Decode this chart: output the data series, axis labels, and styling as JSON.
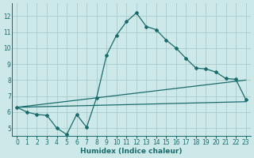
{
  "xlabel": "Humidex (Indice chaleur)",
  "ylabel": "",
  "bg_color": "#cce8e8",
  "grid_color": "#aacccc",
  "line_color": "#1a6b6b",
  "xlim": [
    -0.5,
    23.5
  ],
  "ylim": [
    4.5,
    12.8
  ],
  "xticks": [
    0,
    1,
    2,
    3,
    4,
    5,
    6,
    7,
    8,
    9,
    10,
    11,
    12,
    13,
    14,
    15,
    16,
    17,
    18,
    19,
    20,
    21,
    22,
    23
  ],
  "yticks": [
    5,
    6,
    7,
    8,
    9,
    10,
    11,
    12
  ],
  "curve1_x": [
    0,
    1,
    2,
    3,
    4,
    5,
    6,
    7,
    8,
    9,
    10,
    11,
    12,
    13,
    14,
    15,
    16,
    17,
    18,
    19,
    20,
    21,
    22,
    23
  ],
  "curve1_y": [
    6.3,
    6.0,
    5.85,
    5.8,
    5.0,
    4.6,
    5.85,
    5.05,
    6.9,
    9.55,
    10.8,
    11.65,
    12.2,
    11.35,
    11.15,
    10.5,
    10.0,
    9.35,
    8.75,
    8.7,
    8.5,
    8.1,
    8.05,
    6.8
  ],
  "curve2_x": [
    0,
    23
  ],
  "curve2_y": [
    6.3,
    8.0
  ],
  "curve3_x": [
    0,
    23
  ],
  "curve3_y": [
    6.3,
    6.65
  ],
  "marker": "D",
  "marker_size": 2.0,
  "linewidth": 0.9,
  "tick_fontsize": 5.5,
  "xlabel_fontsize": 6.5
}
